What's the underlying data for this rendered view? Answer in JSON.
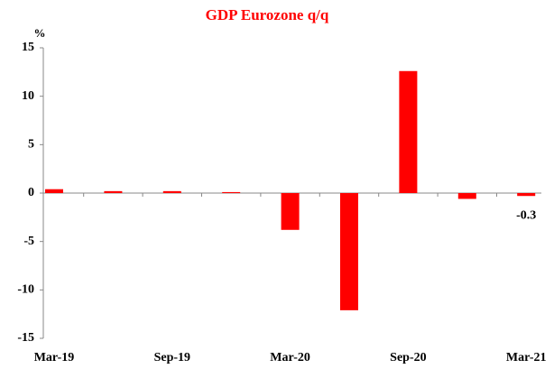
{
  "chart_data": {
    "type": "bar",
    "title": "GDP Eurozone q/q",
    "y_label": "%",
    "categories": [
      "Mar-19",
      null,
      "Sep-19",
      null,
      "Mar-20",
      null,
      "Sep-20",
      null,
      "Mar-21"
    ],
    "values": [
      0.4,
      0.2,
      0.2,
      0.1,
      -3.8,
      -12.1,
      12.6,
      -0.6,
      -0.3
    ],
    "labeled_value_index": 8,
    "color": "#ff0000",
    "ylim": [
      -15,
      15
    ],
    "yticks": [
      -15,
      -10,
      -5,
      0,
      5,
      10,
      15
    ],
    "grid": false
  }
}
